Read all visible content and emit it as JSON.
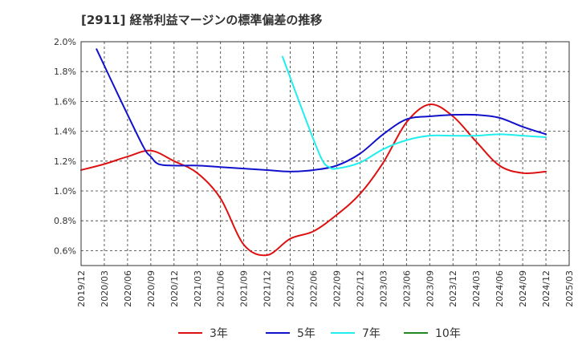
{
  "title": "[2911]  経常利益マージンの標準偏差の推移",
  "chart_data": {
    "type": "line",
    "title": "[2911]  経常利益マージンの標準偏差の推移",
    "xlabel": "",
    "ylabel": "",
    "ylim": [
      0.5,
      2.0
    ],
    "yticks": [
      "0.6%",
      "0.8%",
      "1.0%",
      "1.2%",
      "1.4%",
      "1.6%",
      "1.8%",
      "2.0%"
    ],
    "ytick_values": [
      0.6,
      0.8,
      1.0,
      1.2,
      1.4,
      1.6,
      1.8,
      2.0
    ],
    "xticks": [
      "2019/12",
      "2020/03",
      "2020/06",
      "2020/09",
      "2020/12",
      "2021/03",
      "2021/06",
      "2021/09",
      "2021/12",
      "2022/03",
      "2022/06",
      "2022/09",
      "2022/12",
      "2023/03",
      "2023/06",
      "2023/09",
      "2023/12",
      "2024/03",
      "2024/06",
      "2024/09",
      "2024/12",
      "2025/03"
    ],
    "grid": true,
    "legend_position": "bottom",
    "series": [
      {
        "name": "3年",
        "color": "#dd1111",
        "x": [
          0,
          3,
          6,
          9,
          12,
          15,
          18,
          21,
          24,
          27,
          30,
          33,
          36,
          39,
          42,
          45,
          48,
          51,
          54,
          57,
          60
        ],
        "values": [
          1.14,
          1.18,
          1.23,
          1.27,
          1.2,
          1.12,
          0.95,
          0.64,
          0.57,
          0.68,
          0.73,
          0.84,
          0.98,
          1.19,
          1.46,
          1.58,
          1.5,
          1.33,
          1.17,
          1.12,
          1.13
        ]
      },
      {
        "name": "5年",
        "color": "#1111cc",
        "x": [
          2,
          5,
          8,
          9,
          10,
          12,
          15,
          18,
          21,
          24,
          27,
          30,
          33,
          36,
          39,
          42,
          45,
          48,
          51,
          54,
          57,
          60
        ],
        "values": [
          1.95,
          1.62,
          1.3,
          1.23,
          1.18,
          1.17,
          1.17,
          1.16,
          1.15,
          1.14,
          1.13,
          1.14,
          1.17,
          1.25,
          1.38,
          1.48,
          1.5,
          1.51,
          1.51,
          1.49,
          1.43,
          1.38
        ]
      },
      {
        "name": "7年",
        "color": "#22eeee",
        "x": [
          26,
          29,
          31,
          32,
          33,
          36,
          39,
          42,
          45,
          48,
          51,
          54,
          57,
          60
        ],
        "values": [
          1.9,
          1.48,
          1.22,
          1.16,
          1.15,
          1.19,
          1.28,
          1.34,
          1.37,
          1.37,
          1.37,
          1.38,
          1.37,
          1.36
        ]
      },
      {
        "name": "10年",
        "color": "#228822",
        "x": [],
        "values": []
      }
    ]
  }
}
